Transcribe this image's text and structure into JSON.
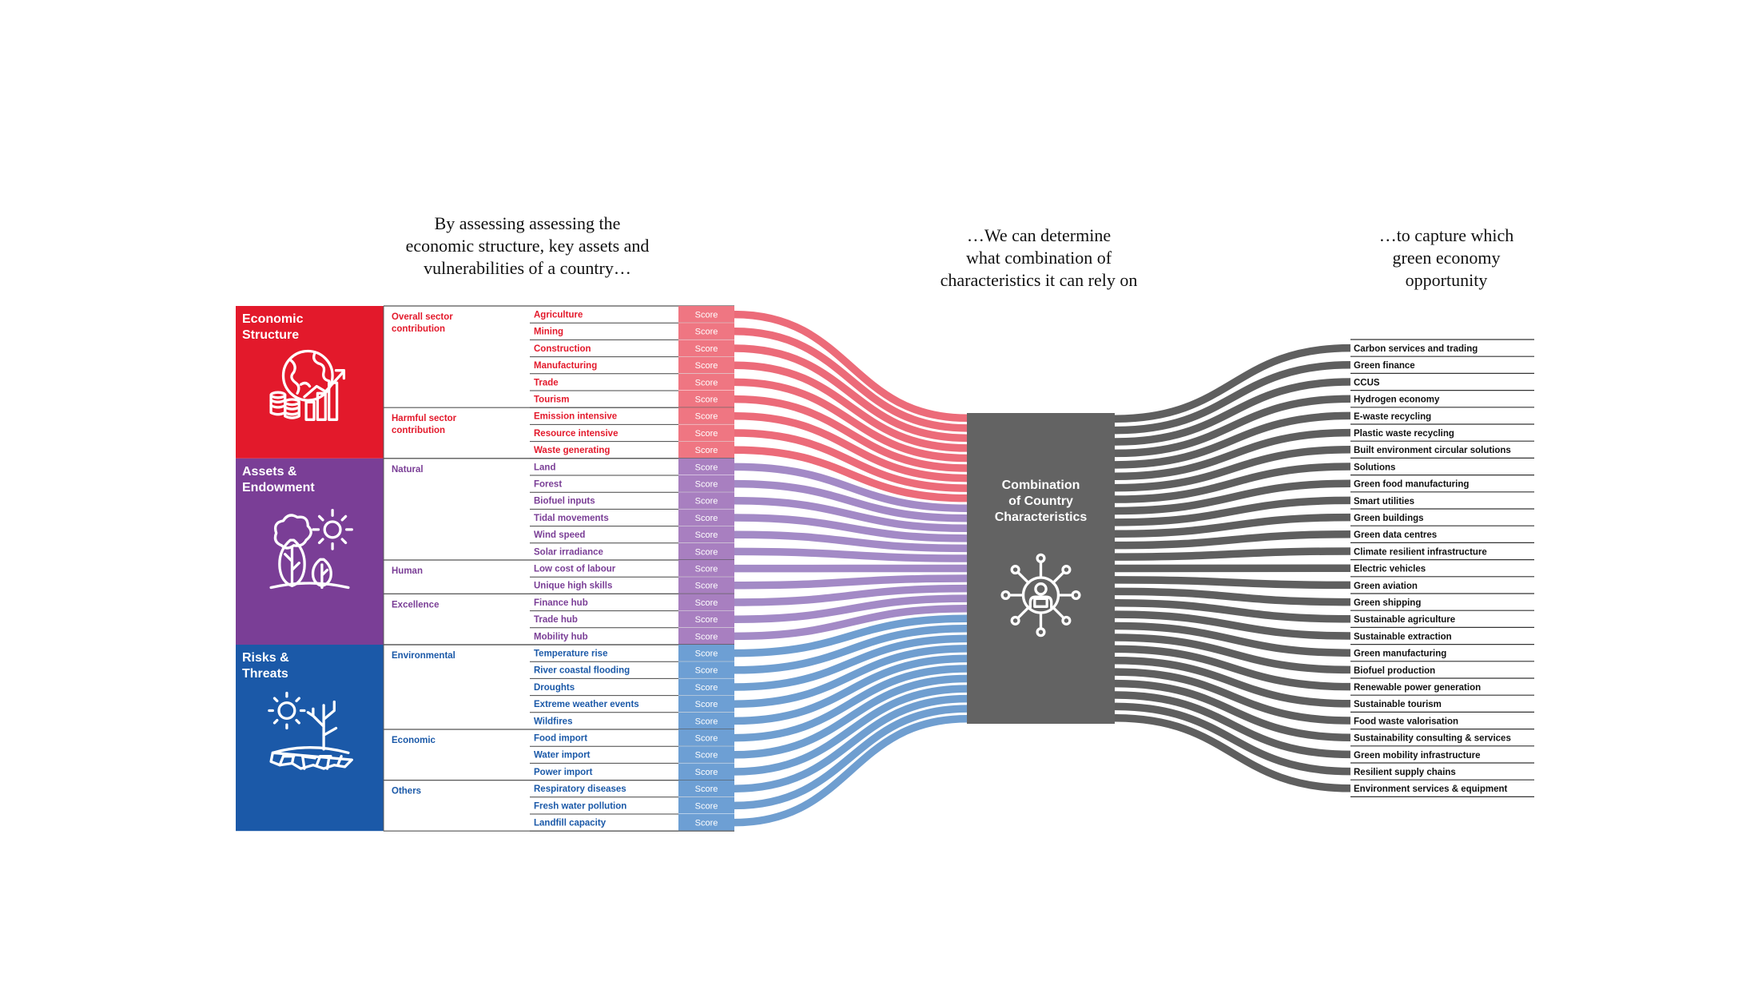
{
  "headings": {
    "left": "By assessing assessing the\neconomic structure, key assets and\nvulnerabilities of a country…",
    "middle": "…We can determine\nwhat combination of\ncharacteristics it can rely on",
    "right": "…to capture which\ngreen economy\nopportunity"
  },
  "score_label": "Score",
  "center_box": {
    "title": "Combination\nof Country\nCharacteristics",
    "color": "#636363",
    "icon": "person-network-icon"
  },
  "categories": [
    {
      "id": "economic-structure",
      "title": "Economic\nStructure",
      "color": "#e3192b",
      "score_color": "#ef7682",
      "flow_color": "#ec6b79",
      "icon": "globe-growth-icon",
      "groups": [
        {
          "label": "Overall sector\ncontribution",
          "items": [
            "Agriculture",
            "Mining",
            "Construction",
            "Manufacturing",
            "Trade",
            "Tourism"
          ]
        },
        {
          "label": "Harmful sector\ncontribution",
          "items": [
            "Emission intensive",
            "Resource intensive",
            "Waste generating"
          ]
        }
      ]
    },
    {
      "id": "assets-endowment",
      "title": "Assets &\nEndowment",
      "color": "#7a3e96",
      "score_color": "#a87fc0",
      "flow_color": "#a38ac6",
      "icon": "trees-sun-icon",
      "groups": [
        {
          "label": "Natural",
          "items": [
            "Land",
            "Forest",
            "Biofuel inputs",
            "Tidal movements",
            "Wind speed",
            "Solar irradiance"
          ]
        },
        {
          "label": "Human",
          "items": [
            "Low cost of labour",
            "Unique high skills"
          ]
        },
        {
          "label": "Excellence",
          "items": [
            "Finance hub",
            "Trade hub",
            "Mobility hub"
          ]
        }
      ]
    },
    {
      "id": "risks-threats",
      "title": "Risks &\nThreats",
      "color": "#1b59a8",
      "score_color": "#6d9fd4",
      "flow_color": "#6f9ed0",
      "icon": "drought-sun-icon",
      "groups": [
        {
          "label": "Environmental",
          "items": [
            "Temperature rise",
            "River coastal flooding",
            "Droughts",
            "Extreme weather events",
            "Wildfires"
          ]
        },
        {
          "label": "Economic",
          "items": [
            "Food import",
            "Water import",
            "Power import"
          ]
        },
        {
          "label": "Others",
          "items": [
            "Respiratory diseases",
            "Fresh water pollution",
            "Landfill capacity"
          ]
        }
      ]
    }
  ],
  "opportunities": [
    "Carbon services and trading",
    "Green finance",
    "CCUS",
    "Hydrogen economy",
    "E-waste recycling",
    "Plastic waste recycling",
    "Built environment circular solutions",
    "Solutions",
    "Green food manufacturing",
    "Smart utilities",
    "Green buildings",
    "Green data centres",
    "Climate resilient infrastructure",
    "Electric vehicles",
    "Green aviation",
    "Green shipping",
    "Sustainable agriculture",
    "Sustainable extraction",
    "Green manufacturing",
    "Biofuel production",
    "Renewable power generation",
    "Sustainable tourism",
    "Food waste valorisation",
    "Sustainability consulting & services",
    "Green mobility infrastructure",
    "Resilient supply chains",
    "Environment services & equipment"
  ],
  "opportunity_flow_color": "#5f5f5f"
}
